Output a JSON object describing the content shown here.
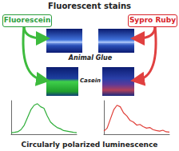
{
  "title": "Fluorescent stains",
  "stains": [
    {
      "label": "Fluorescein",
      "color": "#2e9e3e"
    },
    {
      "label": "Sypro Ruby",
      "color": "#d8232a"
    }
  ],
  "samples": [
    "Animal Glue",
    "Casein"
  ],
  "footer": "Circularly polarized luminescence",
  "chart_data": [
    {
      "type": "line",
      "color": "#2fae3a",
      "x": [
        460,
        472,
        484,
        496,
        508,
        520,
        532,
        544,
        556,
        568,
        580,
        592,
        604,
        616,
        628,
        640,
        652,
        664,
        676,
        688,
        700
      ],
      "values": [
        0.5,
        0.6,
        0.8,
        1.5,
        3,
        5.5,
        8,
        9.5,
        10,
        9,
        8.5,
        6,
        4,
        3,
        2.2,
        1.8,
        1.2,
        1,
        0.8,
        0.6,
        0.5
      ],
      "xlim": [
        460,
        700
      ],
      "ylim": [
        0,
        11
      ],
      "tick_labels": false,
      "grid": false
    },
    {
      "type": "line",
      "color": "#e0403a",
      "x": [
        460,
        472,
        484,
        496,
        508,
        520,
        532,
        544,
        556,
        568,
        580,
        592,
        604,
        616,
        628,
        640,
        652,
        664,
        676,
        688,
        700
      ],
      "values": [
        1,
        2,
        5,
        8,
        9.5,
        9,
        7,
        6,
        4.5,
        4,
        3,
        3.2,
        2.5,
        2,
        2.2,
        1.5,
        1.2,
        1,
        1.3,
        0.8,
        0.7
      ],
      "xlim": [
        460,
        700
      ],
      "ylim": [
        0,
        11
      ],
      "tick_labels": false,
      "grid": false
    }
  ]
}
